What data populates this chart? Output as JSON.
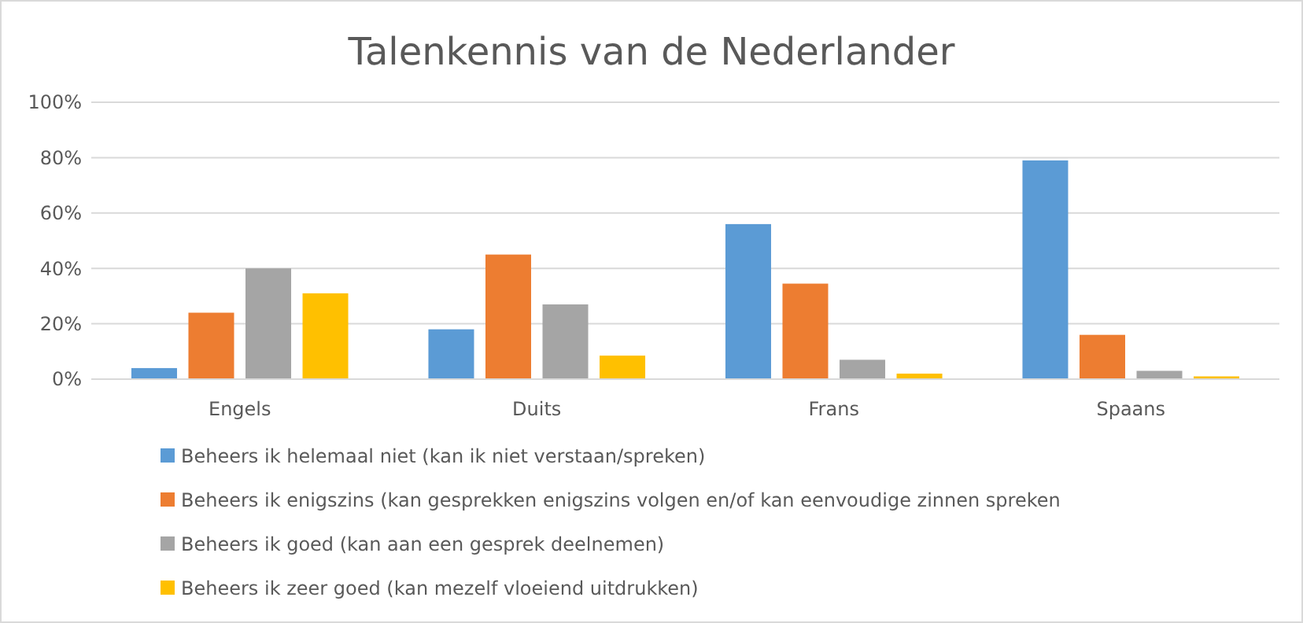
{
  "chart_data": {
    "type": "bar",
    "title": "Talenkennis van de Nederlander",
    "categories": [
      "Engels",
      "Duits",
      "Frans",
      "Spaans"
    ],
    "series": [
      {
        "name": "Beheers ik helemaal niet (kan ik niet verstaan/spreken)",
        "color": "#5b9bd5",
        "values": [
          4,
          18,
          56,
          79
        ]
      },
      {
        "name": "Beheers ik enigszins (kan gesprekken enigszins volgen en/of kan eenvoudige zinnen spreken",
        "color": "#ed7d31",
        "values": [
          24,
          45,
          34.5,
          16
        ]
      },
      {
        "name": "Beheers ik goed (kan aan een gesprek deelnemen)",
        "color": "#a5a5a5",
        "values": [
          40,
          27,
          7,
          3
        ]
      },
      {
        "name": "Beheers ik zeer goed (kan mezelf vloeiend uitdrukken)",
        "color": "#ffc000",
        "values": [
          31,
          8.5,
          2,
          1
        ]
      }
    ],
    "ylim": [
      0,
      100
    ],
    "yticks": [
      {
        "value": 0,
        "label": "0%"
      },
      {
        "value": 20,
        "label": "20%"
      },
      {
        "value": 40,
        "label": "40%"
      },
      {
        "value": 60,
        "label": "60%"
      },
      {
        "value": 80,
        "label": "80%"
      },
      {
        "value": 100,
        "label": "100%"
      }
    ],
    "grid": "y",
    "legend": "bottom"
  }
}
